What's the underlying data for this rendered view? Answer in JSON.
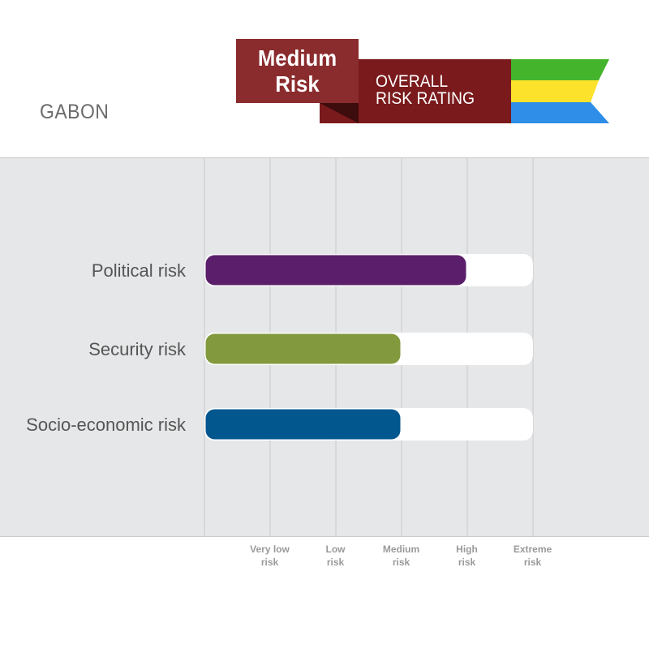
{
  "header": {
    "country": "GABON",
    "badge_line1": "Medium",
    "badge_line2": "Risk",
    "overall_line1": "OVERALL",
    "overall_line2": "RISK RATING",
    "flag_colors": [
      "#44b42d",
      "#fce22a",
      "#2e8ee8"
    ]
  },
  "chart_data": {
    "type": "bar",
    "orientation": "horizontal",
    "title": "",
    "xlabel": "",
    "ylabel": "",
    "scale": [
      "Very low risk",
      "Low risk",
      "Medium risk",
      "High risk",
      "Extreme risk"
    ],
    "scale_ticks": [
      [
        "Very low",
        "risk"
      ],
      [
        "Low",
        "risk"
      ],
      [
        "Medium",
        "risk"
      ],
      [
        "High",
        "risk"
      ],
      [
        "Extreme",
        "risk"
      ]
    ],
    "xlim": [
      0,
      5
    ],
    "grid": true,
    "categories": [
      "Political risk",
      "Security risk",
      "Socio-economic risk"
    ],
    "values": [
      4,
      3,
      3
    ],
    "colors": [
      "#5b1e6b",
      "#82993e",
      "#02578f"
    ],
    "track_color": "#ffffff"
  }
}
